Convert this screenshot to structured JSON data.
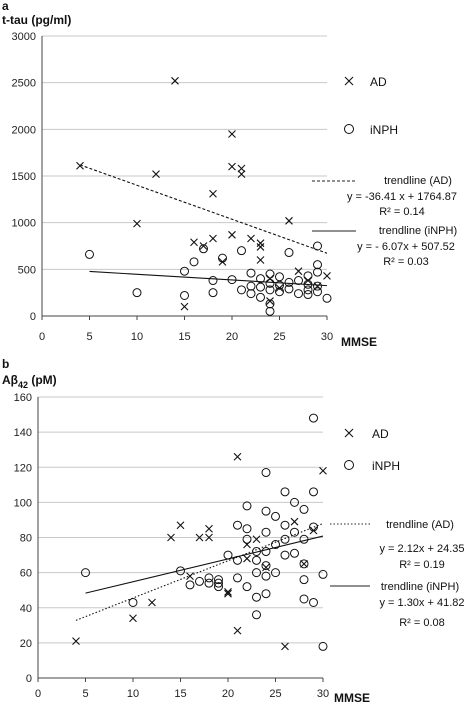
{
  "chart_data": [
    {
      "panel_label": "a",
      "type": "scatter",
      "ylabel": "t-tau (pg/ml)",
      "xlabel": "MMSE",
      "xlim": [
        0,
        30
      ],
      "ylim": [
        0,
        3000
      ],
      "x_ticks": [
        0,
        5,
        10,
        15,
        20,
        25,
        30
      ],
      "y_ticks": [
        0,
        500,
        1000,
        1500,
        2000,
        2500,
        3000
      ],
      "grid": "horizontal",
      "legend_position": "right",
      "series": [
        {
          "name": "AD",
          "marker": "x",
          "points": [
            [
              4,
              1610
            ],
            [
              10,
              990
            ],
            [
              12,
              1520
            ],
            [
              14,
              2520
            ],
            [
              15,
              100
            ],
            [
              16,
              790
            ],
            [
              17,
              750
            ],
            [
              18,
              830
            ],
            [
              18,
              1310
            ],
            [
              19,
              580
            ],
            [
              20,
              870
            ],
            [
              20,
              1600
            ],
            [
              20,
              1950
            ],
            [
              21,
              1520
            ],
            [
              21,
              1580
            ],
            [
              22,
              830
            ],
            [
              23,
              780
            ],
            [
              23,
              740
            ],
            [
              23,
              600
            ],
            [
              24,
              400
            ],
            [
              24,
              160
            ],
            [
              25,
              300
            ],
            [
              26,
              1020
            ],
            [
              27,
              480
            ],
            [
              28,
              380
            ],
            [
              29,
              320
            ],
            [
              30,
              430
            ]
          ]
        },
        {
          "name": "iNPH",
          "marker": "o",
          "points": [
            [
              5,
              660
            ],
            [
              10,
              250
            ],
            [
              15,
              220
            ],
            [
              15,
              480
            ],
            [
              16,
              580
            ],
            [
              17,
              720
            ],
            [
              18,
              380
            ],
            [
              18,
              250
            ],
            [
              19,
              620
            ],
            [
              20,
              390
            ],
            [
              21,
              700
            ],
            [
              21,
              280
            ],
            [
              22,
              460
            ],
            [
              22,
              320
            ],
            [
              22,
              240
            ],
            [
              23,
              400
            ],
            [
              23,
              310
            ],
            [
              23,
              200
            ],
            [
              24,
              450
            ],
            [
              24,
              350
            ],
            [
              24,
              280
            ],
            [
              24,
              130
            ],
            [
              24,
              50
            ],
            [
              25,
              420
            ],
            [
              25,
              330
            ],
            [
              25,
              260
            ],
            [
              26,
              680
            ],
            [
              26,
              360
            ],
            [
              26,
              290
            ],
            [
              27,
              380
            ],
            [
              27,
              240
            ],
            [
              28,
              430
            ],
            [
              28,
              340
            ],
            [
              28,
              280
            ],
            [
              28,
              230
            ],
            [
              29,
              550
            ],
            [
              29,
              470
            ],
            [
              29,
              320
            ],
            [
              29,
              260
            ],
            [
              29,
              750
            ],
            [
              30,
              190
            ]
          ]
        }
      ],
      "trendlines": [
        {
          "label": "trendline (AD)",
          "equation": "y = -36.41 x + 1764.87",
          "r2": "R² = 0.14",
          "slope": -36.41,
          "intercept": 1764.87,
          "x_range": [
            4,
            30
          ],
          "style": "dashed"
        },
        {
          "label": "trendline (iNPH)",
          "equation": "y = - 6.07x + 507.52",
          "r2": "R² = 0.03",
          "slope": -6.07,
          "intercept": 507.52,
          "x_range": [
            5,
            30
          ],
          "style": "solid"
        }
      ]
    },
    {
      "panel_label": "b",
      "type": "scatter",
      "ylabel": "Aβ42 (pM)",
      "ylabel_main": "Aβ",
      "ylabel_sub": "42",
      "ylabel_unit": " (pM)",
      "xlabel": "MMSE",
      "xlim": [
        0,
        30
      ],
      "ylim": [
        0,
        160
      ],
      "x_ticks": [
        0,
        5,
        10,
        15,
        20,
        25,
        30
      ],
      "y_ticks": [
        0,
        20,
        40,
        60,
        80,
        100,
        120,
        140,
        160
      ],
      "grid": "horizontal",
      "legend_position": "right",
      "series": [
        {
          "name": "AD",
          "marker": "x",
          "points": [
            [
              4,
              21
            ],
            [
              10,
              34
            ],
            [
              12,
              43
            ],
            [
              14,
              80
            ],
            [
              15,
              87
            ],
            [
              16,
              58
            ],
            [
              17,
              80
            ],
            [
              18,
              85
            ],
            [
              18,
              80
            ],
            [
              20,
              49
            ],
            [
              20,
              48
            ],
            [
              21,
              126
            ],
            [
              21,
              27
            ],
            [
              22,
              76
            ],
            [
              23,
              79
            ],
            [
              24,
              63
            ],
            [
              26,
              18
            ],
            [
              27,
              89
            ],
            [
              28,
              65
            ],
            [
              29,
              84
            ],
            [
              30,
              118
            ],
            [
              22,
              68
            ]
          ]
        },
        {
          "name": "iNPH",
          "marker": "o",
          "points": [
            [
              5,
              60
            ],
            [
              10,
              43
            ],
            [
              15,
              61
            ],
            [
              16,
              53
            ],
            [
              17,
              55
            ],
            [
              18,
              54
            ],
            [
              18,
              57
            ],
            [
              19,
              56
            ],
            [
              19,
              52
            ],
            [
              19,
              54
            ],
            [
              20,
              70
            ],
            [
              21,
              67
            ],
            [
              21,
              57
            ],
            [
              21,
              87
            ],
            [
              22,
              98
            ],
            [
              22,
              85
            ],
            [
              22,
              79
            ],
            [
              22,
              52
            ],
            [
              23,
              72
            ],
            [
              23,
              67
            ],
            [
              23,
              60
            ],
            [
              23,
              46
            ],
            [
              23,
              36
            ],
            [
              24,
              117
            ],
            [
              24,
              95
            ],
            [
              24,
              83
            ],
            [
              24,
              72
            ],
            [
              24,
              64
            ],
            [
              24,
              58
            ],
            [
              24,
              48
            ],
            [
              25,
              92
            ],
            [
              25,
              76
            ],
            [
              25,
              60
            ],
            [
              26,
              106
            ],
            [
              26,
              87
            ],
            [
              26,
              79
            ],
            [
              26,
              70
            ],
            [
              27,
              100
            ],
            [
              27,
              83
            ],
            [
              27,
              71
            ],
            [
              28,
              96
            ],
            [
              28,
              79
            ],
            [
              28,
              65
            ],
            [
              28,
              56
            ],
            [
              28,
              45
            ],
            [
              29,
              148
            ],
            [
              29,
              106
            ],
            [
              29,
              86
            ],
            [
              29,
              43
            ],
            [
              30,
              59
            ],
            [
              30,
              18
            ]
          ]
        }
      ],
      "trendlines": [
        {
          "label": "trendline (AD)",
          "equation": "y = 2.12x + 24.35",
          "r2": "R² = 0.19",
          "slope": 2.12,
          "intercept": 24.35,
          "x_range": [
            4,
            30
          ],
          "style": "dotted"
        },
        {
          "label": "trendline (iNPH)",
          "equation": "y = 1.30x + 41.82",
          "r2": "R² = 0.08",
          "slope": 1.3,
          "intercept": 41.82,
          "x_range": [
            5,
            30
          ],
          "style": "solid"
        }
      ]
    }
  ]
}
